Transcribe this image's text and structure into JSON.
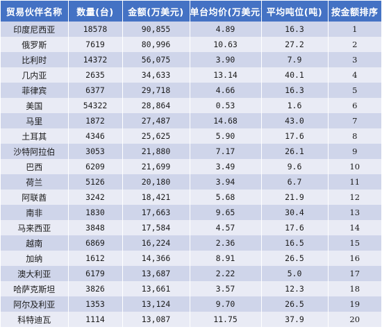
{
  "chart_data": {
    "type": "table",
    "columns": [
      "贸易伙伴名称",
      "数量(台)",
      "金额(万美元)",
      "单台均价(万美元)",
      "平均吨位(吨)",
      "按金额排序"
    ],
    "rows": [
      [
        "印度尼西亚",
        "18578",
        "90,855",
        "4.89",
        "16.3",
        "1"
      ],
      [
        "俄罗斯",
        "7619",
        "80,996",
        "10.63",
        "27.2",
        "2"
      ],
      [
        "比利时",
        "14372",
        "56,075",
        "3.90",
        "7.9",
        "3"
      ],
      [
        "几内亚",
        "2635",
        "34,633",
        "13.14",
        "40.1",
        "4"
      ],
      [
        "菲律宾",
        "6377",
        "29,718",
        "4.66",
        "16.3",
        "5"
      ],
      [
        "美国",
        "54322",
        "28,864",
        "0.53",
        "1.6",
        "6"
      ],
      [
        "马里",
        "1872",
        "27,487",
        "14.68",
        "43.0",
        "7"
      ],
      [
        "土耳其",
        "4346",
        "25,625",
        "5.90",
        "17.6",
        "8"
      ],
      [
        "沙特阿拉伯",
        "3053",
        "21,880",
        "7.17",
        "26.1",
        "9"
      ],
      [
        "巴西",
        "6209",
        "21,699",
        "3.49",
        "9.6",
        "10"
      ],
      [
        "荷兰",
        "5126",
        "20,180",
        "3.94",
        "6.7",
        "11"
      ],
      [
        "阿联酋",
        "3242",
        "18,421",
        "5.68",
        "21.9",
        "12"
      ],
      [
        "南非",
        "1830",
        "17,663",
        "9.65",
        "30.4",
        "13"
      ],
      [
        "马来西亚",
        "3848",
        "17,584",
        "4.57",
        "17.6",
        "14"
      ],
      [
        "越南",
        "6869",
        "16,224",
        "2.36",
        "16.5",
        "15"
      ],
      [
        "加纳",
        "1612",
        "14,366",
        "8.91",
        "26.5",
        "16"
      ],
      [
        "澳大利亚",
        "6179",
        "13,687",
        "2.22",
        "5.0",
        "17"
      ],
      [
        "哈萨克斯坦",
        "3826",
        "13,661",
        "3.57",
        "12.3",
        "18"
      ],
      [
        "阿尔及利亚",
        "1353",
        "13,124",
        "9.70",
        "26.5",
        "19"
      ],
      [
        "科特迪瓦",
        "1114",
        "13,087",
        "11.75",
        "37.9",
        "20"
      ]
    ]
  },
  "colors": {
    "header": "#4472c4",
    "row_odd": "#cfd5ea",
    "row_even": "#e9ebf5"
  }
}
